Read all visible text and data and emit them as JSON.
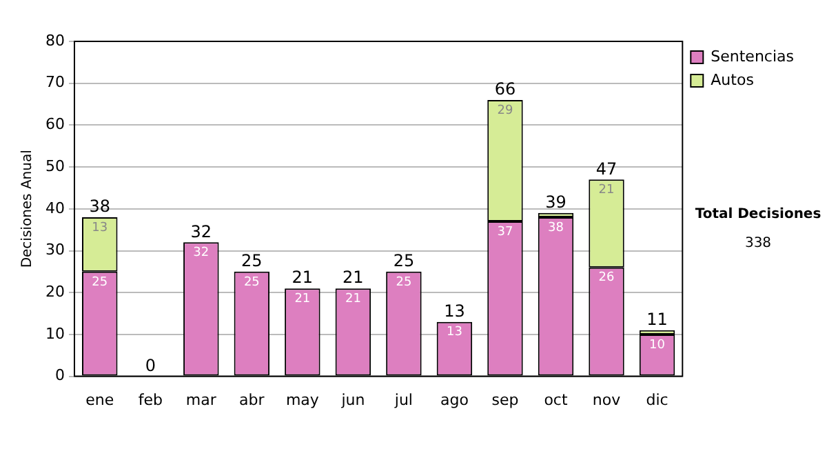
{
  "chart_data": {
    "type": "bar",
    "stacked": true,
    "ylabel": "Decisiones Anual",
    "categories": [
      "ene",
      "feb",
      "mar",
      "abr",
      "may",
      "jun",
      "jul",
      "ago",
      "sep",
      "oct",
      "nov",
      "dic"
    ],
    "series": [
      {
        "name": "Sentencias",
        "color": "#dd7fc0",
        "values": [
          25,
          0,
          32,
          25,
          21,
          21,
          25,
          13,
          37,
          38,
          26,
          10
        ],
        "value_labels": [
          "25",
          null,
          "32",
          "25",
          "21",
          "21",
          "25",
          "13",
          "37",
          "38",
          "26",
          "10"
        ]
      },
      {
        "name": "Autos",
        "color": "#d6ec96",
        "values": [
          13,
          0,
          0,
          0,
          0,
          0,
          0,
          0,
          29,
          1,
          21,
          1
        ],
        "value_labels": [
          "13",
          null,
          null,
          null,
          null,
          null,
          null,
          null,
          "29",
          null,
          "21",
          null
        ]
      }
    ],
    "totals": [
      "38",
      "0",
      "32",
      "25",
      "21",
      "21",
      "25",
      "13",
      "66",
      "39",
      "47",
      "11"
    ],
    "ylim": [
      0,
      80
    ],
    "yticks": [
      0,
      10,
      20,
      30,
      40,
      50,
      60,
      70,
      80
    ],
    "grid": "y",
    "legend": "right",
    "annotations": [
      "Total Decisiones",
      "338"
    ]
  }
}
